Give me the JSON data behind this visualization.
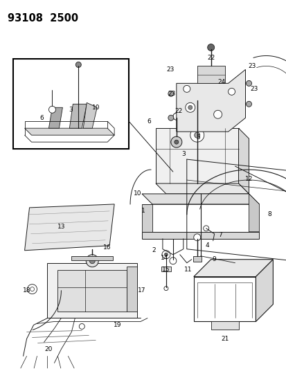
{
  "title": "93108  2500",
  "bg_color": "#ffffff",
  "line_color": "#1a1a1a",
  "fig_width": 4.14,
  "fig_height": 5.33,
  "dpi": 100,
  "title_fontsize": 10.5,
  "title_fontweight": "bold",
  "label_fontsize": 6.5
}
